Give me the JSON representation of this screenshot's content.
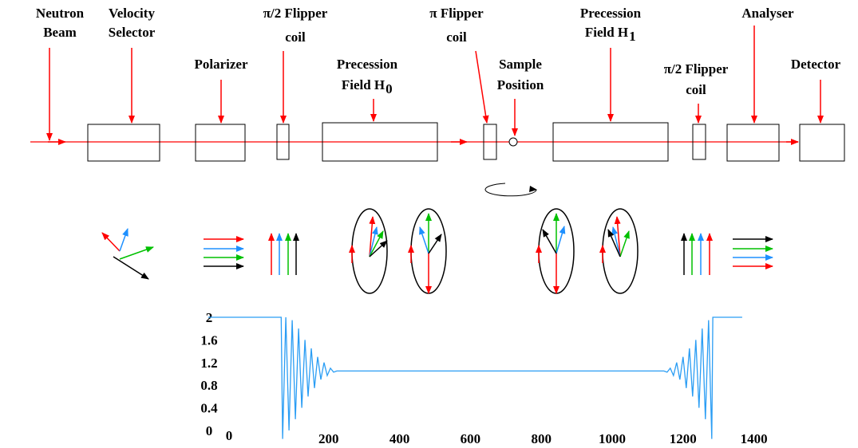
{
  "labels": [
    {
      "lines": [
        "Neutron",
        "Beam"
      ]
    },
    {
      "lines": [
        "Velocity",
        "Selector"
      ]
    },
    {
      "lines": [
        "Polarizer"
      ]
    },
    {
      "lines": [
        "π/2 Flipper",
        "coil"
      ]
    },
    {
      "lines": [
        "Precession",
        "Field H"
      ],
      "subscript": "0"
    },
    {
      "lines": [
        "π Flipper",
        "coil"
      ]
    },
    {
      "lines": [
        "Sample",
        "Position"
      ]
    },
    {
      "lines": [
        "Precession",
        "Field H"
      ],
      "subscript": "1"
    },
    {
      "lines": [
        "π/2 Flipper",
        "coil"
      ]
    },
    {
      "lines": [
        "Analyser"
      ]
    },
    {
      "lines": [
        "Detector"
      ]
    }
  ],
  "chart_data": {
    "type": "line",
    "x": [
      -140,
      66,
      70,
      79,
      88,
      97,
      106,
      115,
      124,
      133,
      142,
      151,
      160,
      169,
      178,
      187,
      196,
      205,
      214,
      223,
      1146,
      1155,
      1164,
      1173,
      1182,
      1191,
      1200,
      1209,
      1218,
      1227,
      1236,
      1245,
      1254,
      1263,
      1272,
      1281,
      1284,
      1367
    ],
    "series": [
      {
        "color": "#2a9df4",
        "values": [
          2,
          2,
          -0.15,
          2.0,
          0.0,
          1.95,
          0.2,
          1.8,
          0.4,
          1.6,
          0.6,
          1.45,
          0.75,
          1.3,
          0.9,
          1.2,
          0.97,
          1.1,
          1.03,
          1.05,
          1.05,
          1.03,
          1.1,
          0.97,
          1.2,
          0.9,
          1.3,
          0.75,
          1.45,
          0.6,
          1.6,
          0.4,
          1.8,
          0.2,
          1.95,
          -0.15,
          2,
          2
        ]
      }
    ],
    "xlim": [
      -150,
      1400
    ],
    "ylim": [
      0,
      2
    ],
    "xticks": [
      0,
      200,
      400,
      600,
      800,
      1000,
      1200,
      1400
    ],
    "yticks": [
      0,
      0.4,
      0.8,
      1.2,
      1.6,
      2
    ]
  }
}
